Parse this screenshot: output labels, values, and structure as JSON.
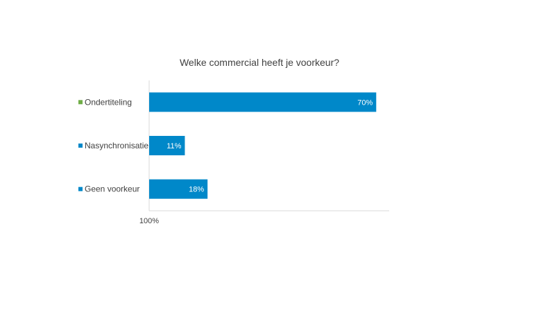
{
  "chart_data": {
    "type": "bar",
    "orientation": "horizontal",
    "title": "Welke commercial heeft je voorkeur?",
    "categories": [
      "Ondertiteling",
      "Nasynchronisatie",
      "Geen voorkeur"
    ],
    "values": [
      70,
      11,
      18
    ],
    "data_labels": [
      "70%",
      "11%",
      "18%"
    ],
    "unit": "%",
    "xlim": [
      0,
      74
    ],
    "x_tick_labels": [
      "100%"
    ],
    "bar_color": "#0088C9",
    "marker_colors": [
      "#70AD47",
      "#0088C9",
      "#0088C9"
    ],
    "legend": "left, beside category labels",
    "grid": false
  }
}
